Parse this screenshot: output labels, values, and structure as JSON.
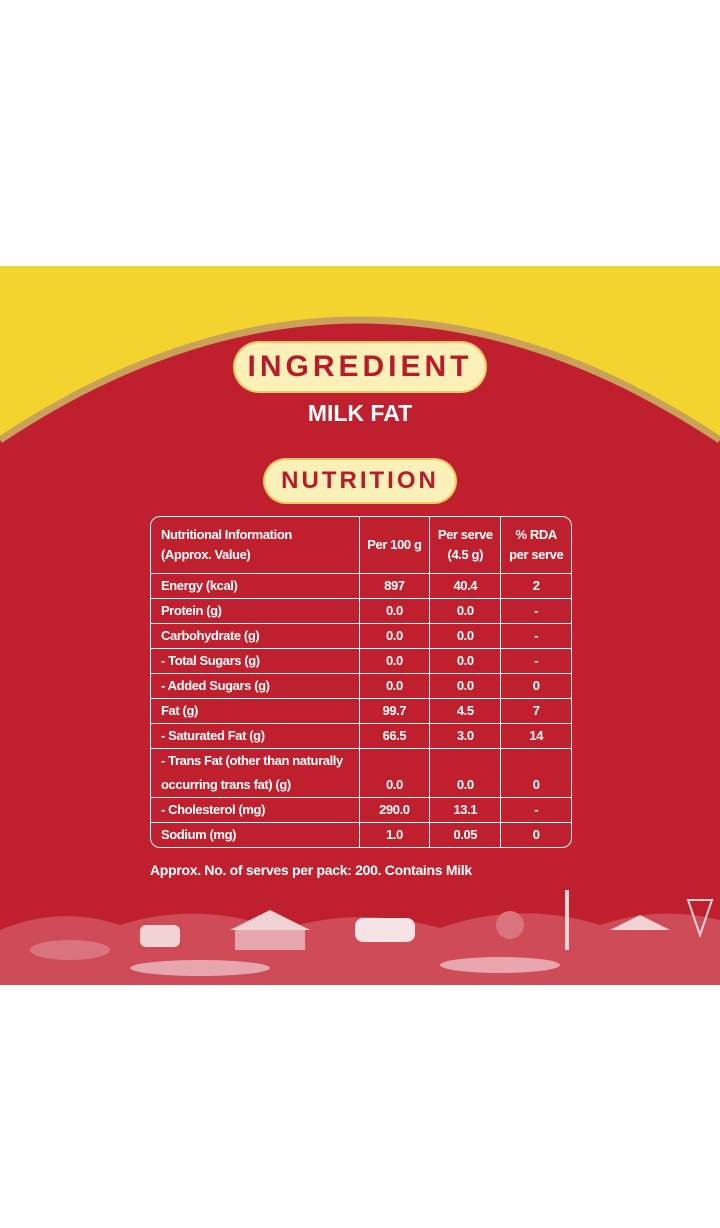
{
  "ingredient": {
    "heading": "INGREDIENT",
    "text": "MILK FAT"
  },
  "nutrition": {
    "heading": "NUTRITION",
    "table": {
      "header": [
        [
          "Nutritional Information",
          "(Approx. Value)"
        ],
        [
          "Per 100 g"
        ],
        [
          "Per serve",
          "(4.5 g)"
        ],
        [
          "% RDA",
          "per serve"
        ]
      ],
      "rows": [
        [
          [
            "Energy (kcal)"
          ],
          "897",
          "40.4",
          "2"
        ],
        [
          [
            "Protein (g)"
          ],
          "0.0",
          "0.0",
          "-"
        ],
        [
          [
            "Carbohydrate (g)"
          ],
          "0.0",
          "0.0",
          "-"
        ],
        [
          [
            "- Total Sugars (g)"
          ],
          "0.0",
          "0.0",
          "-"
        ],
        [
          [
            "- Added Sugars (g)"
          ],
          "0.0",
          "0.0",
          "0"
        ],
        [
          [
            "Fat (g)"
          ],
          "99.7",
          "4.5",
          "7"
        ],
        [
          [
            "- Saturated Fat (g)"
          ],
          "66.5",
          "3.0",
          "14"
        ],
        [
          [
            "- Trans Fat (other than naturally",
            "occurring trans fat) (g)"
          ],
          "0.0",
          "0.0",
          "0"
        ],
        [
          [
            "- Cholesterol (mg)"
          ],
          "290.0",
          "13.1",
          "-"
        ],
        [
          [
            "Sodium (mg)"
          ],
          "1.0",
          "0.05",
          "0"
        ]
      ]
    },
    "footnote": "Approx. No. of serves per pack: 200. Contains Milk"
  }
}
